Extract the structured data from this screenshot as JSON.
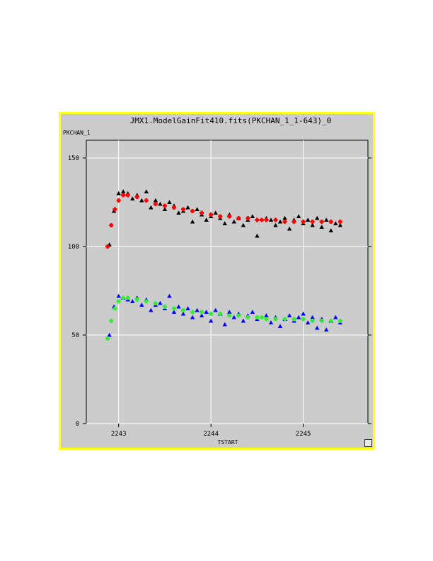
{
  "chart_data": {
    "type": "scatter",
    "title": "JMX1.ModelGainFit410.fits(PKCHAN_1_1-643)_0",
    "xlabel": "TSTART",
    "ylabel": "PKCHAN_1",
    "xlim": [
      2242.65,
      2245.7
    ],
    "ylim": [
      0,
      160
    ],
    "xticks": [
      2243,
      2244,
      2245
    ],
    "yticks": [
      0,
      50,
      100,
      150
    ],
    "grid": true,
    "series": [
      {
        "marker": "triangle",
        "color": "#000000",
        "x": [
          2242.9,
          2242.95,
          2243.0,
          2243.05,
          2243.1,
          2243.15,
          2243.2,
          2243.25,
          2243.3,
          2243.35,
          2243.4,
          2243.45,
          2243.5,
          2243.55,
          2243.6,
          2243.65,
          2243.7,
          2243.75,
          2243.8,
          2243.85,
          2243.9,
          2243.95,
          2244.0,
          2244.05,
          2244.1,
          2244.15,
          2244.2,
          2244.25,
          2244.3,
          2244.35,
          2244.4,
          2244.45,
          2244.5,
          2244.6,
          2244.65,
          2244.7,
          2244.75,
          2244.8,
          2244.85,
          2244.9,
          2244.95,
          2245.0,
          2245.05,
          2245.1,
          2245.15,
          2245.2,
          2245.25,
          2245.3,
          2245.35,
          2245.4
        ],
        "y": [
          101,
          120,
          130,
          131,
          130,
          127,
          129,
          126,
          131,
          122,
          126,
          124,
          121,
          125,
          123,
          119,
          120,
          122,
          114,
          121,
          118,
          115,
          117,
          119,
          116,
          113,
          118,
          114,
          116,
          112,
          115,
          117,
          106,
          116,
          115,
          112,
          114,
          116,
          110,
          115,
          117,
          113,
          115,
          112,
          116,
          111,
          115,
          109,
          113,
          112
        ]
      },
      {
        "marker": "plus",
        "color": "#ff0000",
        "x": [
          2242.88,
          2242.92,
          2242.96,
          2243.0,
          2243.05,
          2243.1,
          2243.2,
          2243.3,
          2243.4,
          2243.5,
          2243.6,
          2243.7,
          2243.8,
          2243.9,
          2244.0,
          2244.1,
          2244.2,
          2244.3,
          2244.4,
          2244.5,
          2244.55,
          2244.6,
          2244.7,
          2244.8,
          2244.9,
          2245.0,
          2245.1,
          2245.2,
          2245.3,
          2245.4
        ],
        "y": [
          100,
          112,
          121,
          126,
          129,
          129,
          128,
          126,
          124,
          123,
          122,
          121,
          120,
          119,
          118,
          117,
          117,
          116,
          116,
          115,
          115,
          115,
          115,
          114,
          114,
          114,
          114,
          114,
          114,
          114
        ]
      },
      {
        "marker": "triangle",
        "color": "#0000ff",
        "x": [
          2242.9,
          2242.95,
          2243.0,
          2243.05,
          2243.1,
          2243.15,
          2243.2,
          2243.25,
          2243.3,
          2243.35,
          2243.4,
          2243.45,
          2243.5,
          2243.55,
          2243.6,
          2243.65,
          2243.7,
          2243.75,
          2243.8,
          2243.85,
          2243.9,
          2243.95,
          2244.0,
          2244.05,
          2244.1,
          2244.15,
          2244.2,
          2244.25,
          2244.3,
          2244.35,
          2244.4,
          2244.45,
          2244.5,
          2244.6,
          2244.65,
          2244.7,
          2244.75,
          2244.8,
          2244.85,
          2244.9,
          2244.95,
          2245.0,
          2245.05,
          2245.1,
          2245.15,
          2245.2,
          2245.25,
          2245.3,
          2245.35,
          2245.4
        ],
        "y": [
          50,
          66,
          72,
          71,
          70,
          69,
          71,
          67,
          70,
          64,
          67,
          68,
          65,
          72,
          63,
          66,
          62,
          65,
          60,
          64,
          61,
          63,
          58,
          64,
          62,
          56,
          63,
          60,
          62,
          58,
          61,
          63,
          59,
          61,
          57,
          60,
          55,
          59,
          61,
          58,
          60,
          62,
          57,
          60,
          54,
          59,
          53,
          58,
          60,
          57
        ]
      },
      {
        "marker": "plus",
        "color": "#33ee33",
        "x": [
          2242.88,
          2242.92,
          2242.96,
          2243.0,
          2243.05,
          2243.1,
          2243.2,
          2243.3,
          2243.4,
          2243.5,
          2243.6,
          2243.7,
          2243.8,
          2243.9,
          2244.0,
          2244.1,
          2244.2,
          2244.3,
          2244.4,
          2244.5,
          2244.55,
          2244.6,
          2244.7,
          2244.8,
          2244.9,
          2245.0,
          2245.1,
          2245.2,
          2245.3,
          2245.4
        ],
        "y": [
          48,
          58,
          65,
          69,
          71,
          71,
          70,
          69,
          68,
          66,
          65,
          64,
          63,
          63,
          62,
          62,
          61,
          61,
          60,
          60,
          60,
          59,
          59,
          59,
          59,
          59,
          58,
          58,
          58,
          58
        ]
      }
    ]
  }
}
